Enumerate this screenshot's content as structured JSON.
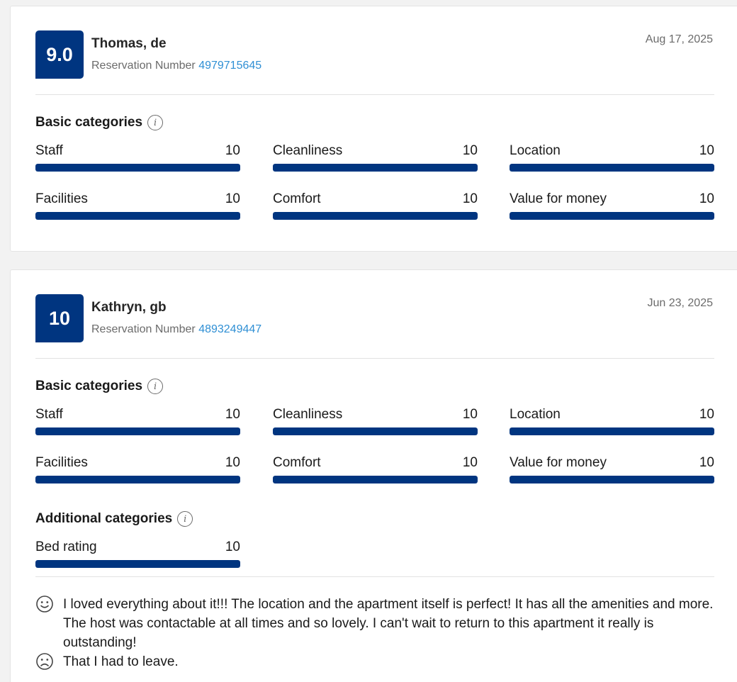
{
  "colors": {
    "score_bg": "#003580",
    "bar_fill": "#003580",
    "link": "#2f8fd4"
  },
  "reviews": [
    {
      "score": "9.0",
      "name": "Thomas, de",
      "reservation_label": "Reservation Number",
      "reservation_number": "4979715645",
      "date": "Aug 17, 2025",
      "basic_title": "Basic categories",
      "basic": [
        {
          "label": "Staff",
          "value": "10",
          "fraction": 1.0
        },
        {
          "label": "Cleanliness",
          "value": "10",
          "fraction": 1.0
        },
        {
          "label": "Location",
          "value": "10",
          "fraction": 1.0
        },
        {
          "label": "Facilities",
          "value": "10",
          "fraction": 1.0
        },
        {
          "label": "Comfort",
          "value": "10",
          "fraction": 1.0
        },
        {
          "label": "Value for money",
          "value": "10",
          "fraction": 1.0
        }
      ]
    },
    {
      "score": "10",
      "name": "Kathryn, gb",
      "reservation_label": "Reservation Number",
      "reservation_number": "4893249447",
      "date": "Jun 23, 2025",
      "basic_title": "Basic categories",
      "basic": [
        {
          "label": "Staff",
          "value": "10",
          "fraction": 1.0
        },
        {
          "label": "Cleanliness",
          "value": "10",
          "fraction": 1.0
        },
        {
          "label": "Location",
          "value": "10",
          "fraction": 1.0
        },
        {
          "label": "Facilities",
          "value": "10",
          "fraction": 1.0
        },
        {
          "label": "Comfort",
          "value": "10",
          "fraction": 1.0
        },
        {
          "label": "Value for money",
          "value": "10",
          "fraction": 1.0
        }
      ],
      "additional_title": "Additional categories",
      "additional": [
        {
          "label": "Bed rating",
          "value": "10",
          "fraction": 1.0
        }
      ],
      "positive_comment": "I loved everything about it!!! The location and the apartment itself is perfect! It has all the amenities and more. The host was contactable at all times and so lovely. I can't wait to return to this apartment it really is outstanding!",
      "negative_comment": "That I had to leave.",
      "icons": {
        "positive": "smiley-face-icon",
        "negative": "sad-face-icon",
        "info": "info-icon"
      }
    }
  ]
}
